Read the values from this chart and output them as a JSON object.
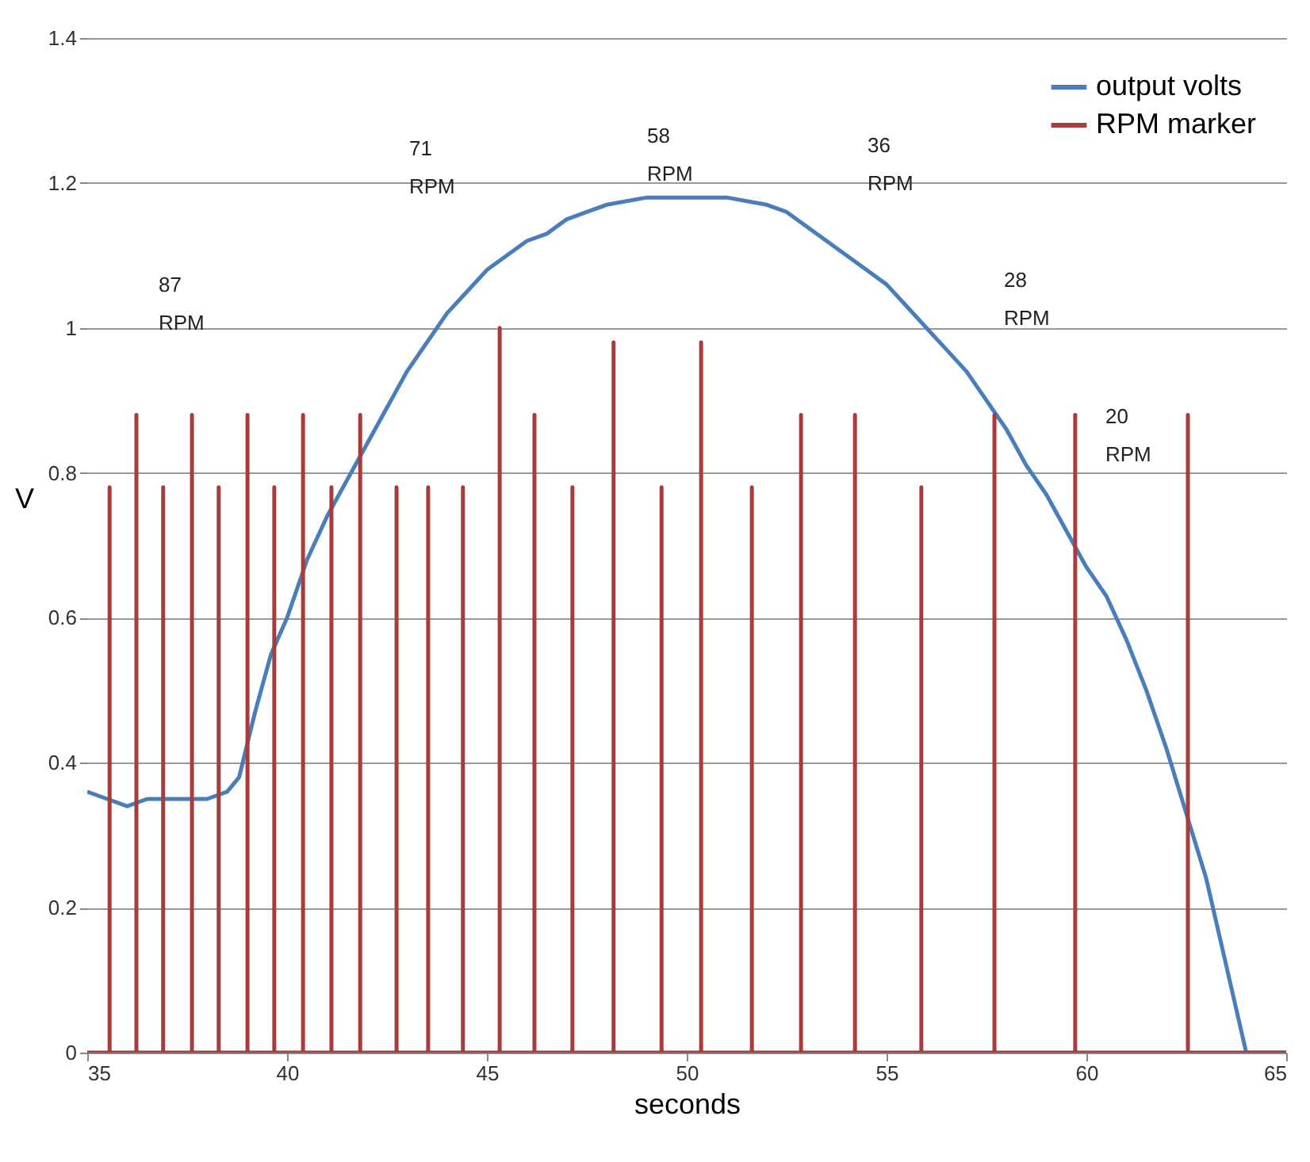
{
  "chart_data": {
    "type": "line",
    "xlabel": "seconds",
    "ylabel": "V",
    "xlim": [
      35,
      65
    ],
    "xticks": [
      35,
      40,
      45,
      50,
      55,
      60,
      65
    ],
    "ylim": [
      0,
      1.4
    ],
    "yticks": [
      0,
      0.2,
      0.4,
      0.6,
      0.8,
      1,
      1.2,
      1.4
    ],
    "grid": "y",
    "legend": "top right",
    "line_style": "solid",
    "marker": "none",
    "series": [
      {
        "name": "output volts",
        "color": "#4a7ebb",
        "x": [
          35,
          35.5,
          36,
          36.5,
          37,
          37.5,
          38,
          38.5,
          38.8,
          39.2,
          39.6,
          40,
          40.5,
          41,
          41.5,
          42,
          42.5,
          43,
          43.5,
          44,
          44.5,
          45,
          45.5,
          46,
          46.5,
          47,
          47.5,
          48,
          49,
          50,
          51,
          52,
          52.5,
          53,
          53.5,
          54,
          54.5,
          55,
          55.5,
          56,
          56.5,
          57,
          57.5,
          58,
          58.5,
          59,
          59.5,
          60,
          60.5,
          61,
          61.5,
          62,
          62.5,
          63,
          63.5,
          64,
          64.5,
          65
        ],
        "values": [
          0.36,
          0.35,
          0.34,
          0.35,
          0.35,
          0.35,
          0.35,
          0.36,
          0.38,
          0.47,
          0.55,
          0.6,
          0.68,
          0.74,
          0.79,
          0.84,
          0.89,
          0.94,
          0.98,
          1.02,
          1.05,
          1.08,
          1.1,
          1.12,
          1.13,
          1.15,
          1.16,
          1.17,
          1.18,
          1.18,
          1.18,
          1.17,
          1.16,
          1.14,
          1.12,
          1.1,
          1.08,
          1.06,
          1.03,
          1.0,
          0.97,
          0.94,
          0.9,
          0.86,
          0.81,
          0.77,
          0.72,
          0.67,
          0.63,
          0.57,
          0.5,
          0.42,
          0.33,
          0.24,
          0.12,
          0,
          0,
          0
        ]
      },
      {
        "name": "RPM marker",
        "color": "#a83c3c",
        "x": [
          35,
          35.56,
          35.56,
          35.56,
          36.23,
          36.23,
          36.23,
          36.9,
          36.9,
          36.9,
          37.62,
          37.62,
          37.62,
          38.29,
          38.29,
          38.29,
          39.01,
          39.01,
          39.01,
          39.68,
          39.68,
          39.68,
          40.4,
          40.4,
          40.4,
          41.11,
          41.11,
          41.11,
          41.83,
          41.83,
          41.83,
          42.74,
          42.74,
          42.74,
          43.53,
          43.53,
          43.53,
          44.4,
          44.4,
          44.4,
          45.32,
          45.32,
          45.32,
          46.19,
          46.19,
          46.19,
          47.14,
          47.14,
          47.14,
          48.17,
          48.17,
          48.17,
          49.37,
          49.37,
          49.37,
          50.36,
          50.36,
          50.36,
          51.63,
          51.63,
          51.63,
          52.86,
          52.86,
          52.86,
          54.21,
          54.21,
          54.21,
          55.87,
          55.87,
          55.87,
          57.7,
          57.7,
          57.7,
          59.72,
          59.72,
          59.72,
          62.54,
          62.54,
          62.54,
          65
        ],
        "values": [
          0,
          0,
          0.78,
          0,
          0,
          0.88,
          0,
          0,
          0.78,
          0,
          0,
          0.88,
          0,
          0,
          0.78,
          0,
          0,
          0.88,
          0,
          0,
          0.78,
          0,
          0,
          0.88,
          0,
          0,
          0.78,
          0,
          0,
          0.88,
          0,
          0,
          0.78,
          0,
          0,
          0.78,
          0,
          0,
          0.78,
          0,
          0,
          1.0,
          0,
          0,
          0.88,
          0,
          0,
          0.78,
          0,
          0,
          0.98,
          0,
          0,
          0.78,
          0,
          0,
          0.98,
          0,
          0,
          0.78,
          0,
          0,
          0.88,
          0,
          0,
          0.88,
          0,
          0,
          0.78,
          0,
          0,
          0.88,
          0,
          0,
          0.88,
          0,
          0,
          0.88,
          0,
          0
        ]
      }
    ],
    "annotations": [
      "87\nRPM",
      "71\nRPM",
      "58\nRPM",
      "36\nRPM",
      "28\nRPM",
      "20\nRPM"
    ]
  }
}
